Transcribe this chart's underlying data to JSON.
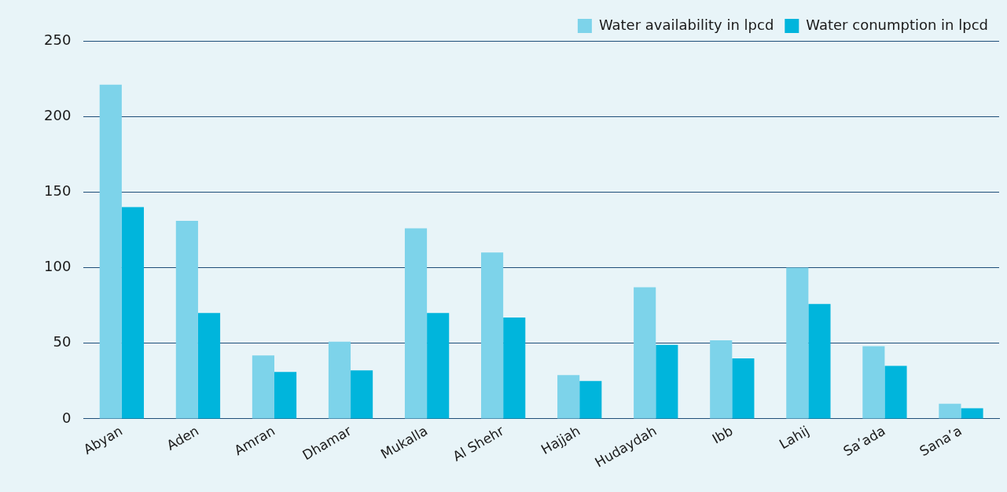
{
  "chart_data": {
    "type": "bar",
    "categories": [
      "Abyan",
      "Aden",
      "Amran",
      "Dhamar",
      "Mukalla",
      "Al Shehr",
      "Hajjah",
      "Hudaydah",
      "Ibb",
      "Lahij",
      "Sa’ada",
      "Sana’a"
    ],
    "series": [
      {
        "name": "Water availability in lpcd",
        "color": "#7dd3ea",
        "values": [
          221,
          131,
          42,
          51,
          126,
          110,
          29,
          87,
          52,
          100,
          48,
          10
        ]
      },
      {
        "name": "Water conumption in lpcd",
        "color": "#00b5dc",
        "values": [
          140,
          70,
          31,
          32,
          70,
          67,
          25,
          49,
          40,
          76,
          35,
          7
        ]
      }
    ],
    "ylim": [
      0,
      250
    ],
    "yticks": [
      0,
      50,
      100,
      150,
      200,
      250
    ],
    "grid": "y",
    "legend": "top right"
  }
}
